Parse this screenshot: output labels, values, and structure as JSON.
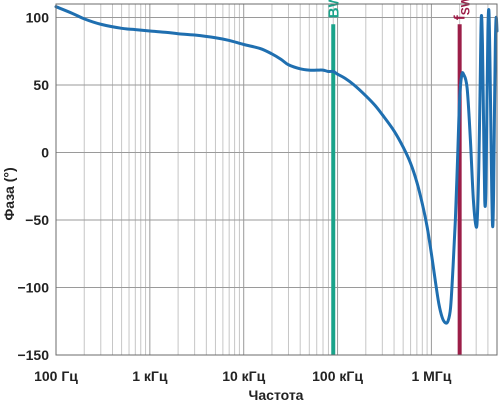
{
  "chart_data": {
    "type": "line",
    "xlabel": "Частота",
    "ylabel": "Фаза (°)",
    "xscale": "log",
    "xlim": [
      100,
      5000000
    ],
    "ylim": [
      -150,
      110
    ],
    "grid": true,
    "x_ticks": [
      {
        "value": 100,
        "label": "100 Гц"
      },
      {
        "value": 1000,
        "label": "1 кГц"
      },
      {
        "value": 10000,
        "label": "10 кГц"
      },
      {
        "value": 100000,
        "label": "100 кГц"
      },
      {
        "value": 1000000,
        "label": "1 МГц"
      }
    ],
    "y_ticks": [
      {
        "value": 100,
        "label": "100"
      },
      {
        "value": 50,
        "label": "50"
      },
      {
        "value": 0,
        "label": "0"
      },
      {
        "value": -50,
        "label": "−50"
      },
      {
        "value": -100,
        "label": "−100"
      },
      {
        "value": -150,
        "label": "−150"
      }
    ],
    "markers": [
      {
        "name": "BW",
        "label": "BW",
        "x": 90000,
        "y_top": 95,
        "color": "#1aa38a"
      },
      {
        "name": "fsw",
        "label_main": "f",
        "label_sub": "SW",
        "x": 2000000,
        "y_top": 95,
        "color": "#9c1e48"
      }
    ],
    "series": [
      {
        "color": "#1f6fb0",
        "x": [
          100,
          150,
          200,
          300,
          500,
          700,
          1000,
          1500,
          2000,
          3000,
          5000,
          7000,
          10000,
          15000,
          20000,
          25000,
          30000,
          40000,
          50000,
          60000,
          70000,
          80000,
          90000,
          100000,
          120000,
          150000,
          200000,
          250000,
          300000,
          400000,
          500000,
          600000,
          700000,
          800000,
          900000,
          1000000,
          1100000,
          1200000,
          1300000,
          1400000,
          1500000,
          1600000,
          1700000,
          1800000,
          1900000,
          2000000,
          2100000,
          2200000,
          2400000,
          2600000,
          2800000,
          3000000,
          3100000,
          3200000,
          3300000,
          3400000,
          3500000,
          3600000,
          3700000,
          3800000,
          3900000,
          4000000,
          4100000,
          4200000,
          4300000,
          4400000,
          4500000,
          4600000,
          4700000,
          4800000,
          4900000,
          5000000
        ],
        "values": [
          108,
          103,
          99,
          95,
          92,
          91,
          90,
          89,
          88,
          87,
          85,
          83,
          80,
          77,
          73,
          69,
          65,
          62,
          61,
          61,
          61,
          60,
          60,
          58,
          55,
          50,
          42,
          35,
          28,
          16,
          4,
          -8,
          -22,
          -38,
          -55,
          -75,
          -95,
          -112,
          -122,
          -126,
          -125,
          -115,
          -85,
          -50,
          -5,
          40,
          57,
          58,
          48,
          10,
          -35,
          -55,
          -45,
          -10,
          45,
          100,
          80,
          20,
          -35,
          -30,
          30,
          90,
          105,
          70,
          20,
          -30,
          -55,
          -30,
          30,
          80,
          100,
          90
        ]
      }
    ]
  }
}
